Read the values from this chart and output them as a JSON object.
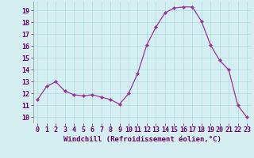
{
  "x": [
    0,
    1,
    2,
    3,
    4,
    5,
    6,
    7,
    8,
    9,
    10,
    11,
    12,
    13,
    14,
    15,
    16,
    17,
    18,
    19,
    20,
    21,
    22,
    23
  ],
  "y": [
    11.5,
    12.6,
    13.0,
    12.2,
    11.9,
    11.8,
    11.9,
    11.7,
    11.5,
    11.1,
    12.0,
    13.7,
    16.1,
    17.6,
    18.8,
    19.2,
    19.3,
    19.3,
    18.1,
    16.1,
    14.8,
    14.0,
    11.0,
    10.0
  ],
  "line_color": "#993399",
  "marker": "D",
  "markersize": 2.0,
  "linewidth": 0.9,
  "xlabel": "Windchill (Refroidissement éolien,°C)",
  "xlabel_fontsize": 6.5,
  "xtick_labels": [
    "0",
    "1",
    "2",
    "3",
    "4",
    "5",
    "6",
    "7",
    "8",
    "9",
    "10",
    "11",
    "12",
    "13",
    "14",
    "15",
    "16",
    "17",
    "18",
    "19",
    "20",
    "21",
    "22",
    "23"
  ],
  "ytick_values": [
    10,
    11,
    12,
    13,
    14,
    15,
    16,
    17,
    18,
    19
  ],
  "ylim": [
    9.5,
    19.75
  ],
  "xlim": [
    -0.5,
    23.5
  ],
  "grid_color": "#aadddd",
  "bg_color": "#d5eef2",
  "tick_fontsize": 6.0,
  "label_color": "#660066"
}
